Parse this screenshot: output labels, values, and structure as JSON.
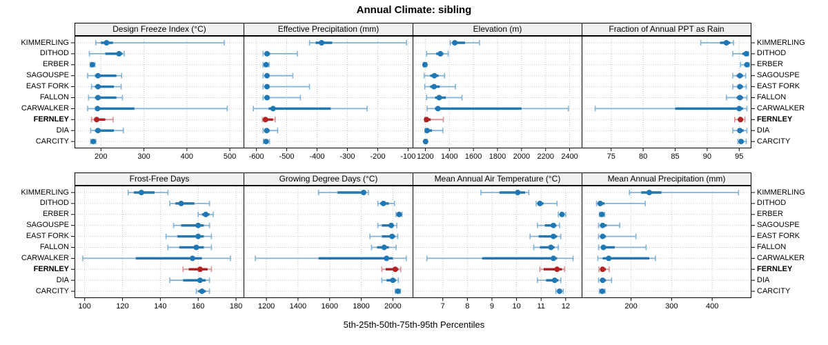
{
  "title": "Annual Climate: sibling",
  "caption": "5th-25th-50th-75th-95th Percentiles",
  "stations": [
    "KIMMERLING",
    "DITHOD",
    "ERBER",
    "SAGOUSPE",
    "EAST FORK",
    "FALLON",
    "CARWALKER",
    "FERNLEY",
    "DIA",
    "CARCITY"
  ],
  "highlight_station": "FERNLEY",
  "percentile_levels": [
    5,
    25,
    50,
    75,
    95
  ],
  "colors": {
    "series": "#1f77b4",
    "series_light": "#7fb2d8",
    "highlight": "#b22222",
    "highlight_light": "#d89090",
    "grid": "#c3c3c3",
    "panel_border": "#000000",
    "header_bg": "#f0f0f0",
    "text": "#000000"
  },
  "chart_data": {
    "type": "dot-whisker-trellis",
    "layout": {
      "rows": 2,
      "cols": 4,
      "grid": "dotted",
      "row_labels_both_sides": true
    },
    "panels": [
      {
        "title": "Design Freeze Index (°C)",
        "xlim": [
          140,
          532
        ],
        "ticks": [
          200,
          300,
          400,
          500
        ],
        "series": [
          [
            188,
            200,
            213,
            228,
            487
          ],
          [
            173,
            210,
            242,
            250,
            254
          ],
          [
            175,
            178,
            180,
            183,
            186
          ],
          [
            169,
            186,
            193,
            236,
            248
          ],
          [
            178,
            186,
            193,
            230,
            247
          ],
          [
            171,
            186,
            193,
            236,
            250
          ],
          [
            169,
            186,
            192,
            278,
            494
          ],
          [
            178,
            184,
            190,
            210,
            228
          ],
          [
            176,
            186,
            193,
            230,
            252
          ],
          [
            176,
            179,
            182,
            185,
            188
          ]
        ]
      },
      {
        "title": "Effective Precipitation (mm)",
        "xlim": [
          -640,
          -85
        ],
        "ticks": [
          -600,
          -500,
          -400,
          -300,
          -200,
          -100
        ],
        "series": [
          [
            -425,
            -405,
            -385,
            -350,
            -105
          ],
          [
            -578,
            -572,
            -565,
            -555,
            -465
          ],
          [
            -578,
            -572,
            -568,
            -564,
            -558
          ],
          [
            -578,
            -570,
            -565,
            -558,
            -480
          ],
          [
            -578,
            -570,
            -565,
            -557,
            -425
          ],
          [
            -578,
            -570,
            -565,
            -556,
            -455
          ],
          [
            -610,
            -560,
            -545,
            -355,
            -235
          ],
          [
            -580,
            -575,
            -570,
            -545,
            -538
          ],
          [
            -578,
            -572,
            -566,
            -556,
            -530
          ],
          [
            -577,
            -572,
            -568,
            -563,
            -557
          ]
        ]
      },
      {
        "title": "Elevation (m)",
        "xlim": [
          1100,
          2500
        ],
        "ticks": [
          1200,
          1400,
          1600,
          1800,
          2000,
          2200,
          2400
        ],
        "series": [
          [
            1408,
            1428,
            1445,
            1530,
            1650
          ],
          [
            1210,
            1290,
            1325,
            1350,
            1390
          ],
          [
            1185,
            1192,
            1197,
            1203,
            1210
          ],
          [
            1190,
            1240,
            1275,
            1310,
            1360
          ],
          [
            1195,
            1240,
            1272,
            1320,
            1450
          ],
          [
            1210,
            1280,
            1315,
            1370,
            1505
          ],
          [
            1215,
            1280,
            1305,
            2000,
            2390
          ],
          [
            1195,
            1202,
            1210,
            1245,
            1350
          ],
          [
            1198,
            1205,
            1215,
            1255,
            1345
          ],
          [
            1192,
            1197,
            1202,
            1207,
            1212
          ]
        ]
      },
      {
        "title": "Fraction of Annual PPT as Rain",
        "xlim": [
          70.5,
          96.8
        ],
        "ticks": [
          75,
          80,
          85,
          90,
          95
        ],
        "series": [
          [
            89,
            92,
            93,
            93.6,
            94.1
          ],
          [
            94,
            95.5,
            96.1,
            96.3,
            96.5
          ],
          [
            95.2,
            95.9,
            96.2,
            96.4,
            96.6
          ],
          [
            94,
            94.6,
            95.1,
            95.6,
            96
          ],
          [
            94,
            94.7,
            95.1,
            95.6,
            96.1
          ],
          [
            93,
            94.6,
            95.1,
            95.6,
            96.2
          ],
          [
            72.5,
            85,
            95,
            95.6,
            96.2
          ],
          [
            94.3,
            94.8,
            95.2,
            95.6,
            95.9
          ],
          [
            94,
            94.7,
            95.1,
            95.7,
            96.2
          ],
          [
            94.8,
            95.1,
            95.3,
            95.7,
            96.1
          ]
        ]
      },
      {
        "title": "Frost-Free Days",
        "xlim": [
          95,
          184
        ],
        "ticks": [
          100,
          120,
          140,
          160,
          180
        ],
        "series": [
          [
            123,
            126,
            130,
            137,
            144
          ],
          [
            145,
            148,
            151,
            158,
            166
          ],
          [
            160,
            162,
            164,
            166,
            168
          ],
          [
            147,
            151,
            160,
            163,
            166
          ],
          [
            143,
            149,
            160,
            163,
            167
          ],
          [
            144,
            150,
            159,
            163,
            167
          ],
          [
            99,
            127,
            157,
            162,
            177
          ],
          [
            152,
            155,
            161,
            165,
            167
          ],
          [
            145,
            152,
            161,
            164,
            166
          ],
          [
            159,
            160,
            162,
            164,
            166
          ]
        ]
      },
      {
        "title": "Growing Degree Days (°C)",
        "xlim": [
          1060,
          2125
        ],
        "ticks": [
          1200,
          1400,
          1600,
          1800,
          2000
        ],
        "series": [
          [
            1530,
            1650,
            1815,
            1830,
            1845
          ],
          [
            1905,
            1920,
            1940,
            1975,
            2010
          ],
          [
            2020,
            2032,
            2040,
            2050,
            2058
          ],
          [
            1905,
            1930,
            1990,
            2005,
            2025
          ],
          [
            1855,
            1930,
            1995,
            2015,
            2030
          ],
          [
            1865,
            1900,
            1945,
            1975,
            2020
          ],
          [
            1130,
            1530,
            1960,
            2000,
            2085
          ],
          [
            1930,
            1955,
            2015,
            2035,
            2050
          ],
          [
            1930,
            1960,
            2000,
            2020,
            2035
          ],
          [
            2015,
            2025,
            2032,
            2040,
            2048
          ]
        ]
      },
      {
        "title": "Mean Annual Air Temperature (°C)",
        "xlim": [
          5.8,
          12.65
        ],
        "ticks": [
          7,
          8,
          9,
          10,
          11,
          12
        ],
        "series": [
          [
            8.55,
            9.3,
            10.05,
            10.35,
            10.5
          ],
          [
            10.8,
            10.88,
            10.95,
            11.1,
            11.65
          ],
          [
            11.7,
            11.8,
            11.85,
            11.92,
            12
          ],
          [
            10.85,
            11.15,
            11.5,
            11.62,
            11.75
          ],
          [
            10.55,
            10.9,
            11.5,
            11.65,
            11.8
          ],
          [
            10.7,
            10.95,
            11.4,
            11.55,
            11.7
          ],
          [
            6.35,
            8.6,
            11.5,
            11.65,
            12.3
          ],
          [
            10.95,
            11.1,
            11.65,
            11.85,
            11.95
          ],
          [
            10.85,
            11.2,
            11.55,
            11.7,
            11.8
          ],
          [
            11.6,
            11.7,
            11.75,
            11.82,
            11.9
          ]
        ]
      },
      {
        "title": "Mean Annual Precipitation (mm)",
        "xlim": [
          80,
          495
        ],
        "ticks": [
          200,
          300,
          400
        ],
        "series": [
          [
            196,
            225,
            245,
            275,
            465
          ],
          [
            115,
            118,
            124,
            135,
            235
          ],
          [
            122,
            125,
            128,
            131,
            135
          ],
          [
            120,
            124,
            130,
            140,
            172
          ],
          [
            120,
            124,
            130,
            138,
            212
          ],
          [
            120,
            126,
            132,
            160,
            237
          ],
          [
            118,
            130,
            145,
            245,
            260
          ],
          [
            121,
            125,
            130,
            138,
            146
          ],
          [
            120,
            125,
            130,
            138,
            152
          ],
          [
            122,
            126,
            129,
            132,
            136
          ]
        ]
      }
    ]
  }
}
